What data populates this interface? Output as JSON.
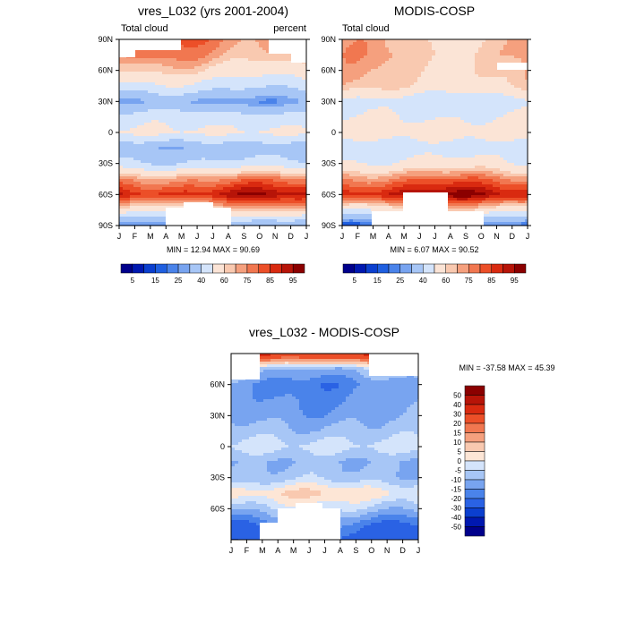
{
  "chart_data": [
    {
      "type": "heatmap",
      "title": "vres_L032 (yrs 2001-2004)",
      "left_label": "Total cloud",
      "right_label": "percent",
      "stats": "MIN =  12.94 MAX =  90.69",
      "x_ticks": [
        "J",
        "F",
        "M",
        "A",
        "M",
        "J",
        "J",
        "A",
        "S",
        "O",
        "N",
        "D",
        "J"
      ],
      "y_ticks": [
        "90N",
        "60N",
        "30N",
        "0",
        "30S",
        "60S",
        "90S"
      ],
      "ylim": [
        -90,
        90
      ],
      "levels": [
        5,
        10,
        15,
        20,
        25,
        30,
        40,
        50,
        60,
        65,
        70,
        75,
        80,
        85,
        90,
        95
      ],
      "colorbar_labels": [
        "5",
        "15",
        "25",
        "40",
        "60",
        "75",
        "85",
        "95"
      ],
      "colors": [
        "#00008b",
        "#0018b0",
        "#0b3fcf",
        "#1f5fe0",
        "#4a83ea",
        "#78a4f0",
        "#a7c6f6",
        "#d4e4fb",
        "#fbe4d6",
        "#f9c9b0",
        "#f5a07e",
        "#f17750",
        "#ec4f28",
        "#d92a10",
        "#b71408",
        "#8b0000"
      ],
      "profile": [
        {
          "lat": 90,
          "value": 72
        },
        {
          "lat": 75,
          "value": 68
        },
        {
          "lat": 60,
          "value": 58
        },
        {
          "lat": 45,
          "value": 45
        },
        {
          "lat": 30,
          "value": 28
        },
        {
          "lat": 15,
          "value": 45
        },
        {
          "lat": 0,
          "value": 52
        },
        {
          "lat": -15,
          "value": 32
        },
        {
          "lat": -30,
          "value": 42
        },
        {
          "lat": -45,
          "value": 70
        },
        {
          "lat": -60,
          "value": 86
        },
        {
          "lat": -75,
          "value": 58
        },
        {
          "lat": -90,
          "value": 25
        }
      ]
    },
    {
      "type": "heatmap",
      "title": "MODIS-COSP",
      "left_label": "Total cloud",
      "stats": "MIN =   6.07 MAX =  90.52",
      "x_ticks": [
        "J",
        "F",
        "M",
        "A",
        "M",
        "J",
        "J",
        "A",
        "S",
        "O",
        "N",
        "D",
        "J"
      ],
      "y_ticks": [
        "90N",
        "60N",
        "30N",
        "0",
        "30S",
        "60S",
        "90S"
      ],
      "ylim": [
        -90,
        90
      ],
      "levels": [
        5,
        10,
        15,
        20,
        25,
        30,
        40,
        50,
        60,
        65,
        70,
        75,
        80,
        85,
        90,
        95
      ],
      "colorbar_labels": [
        "5",
        "15",
        "25",
        "40",
        "60",
        "75",
        "85",
        "95"
      ],
      "colors": [
        "#00008b",
        "#0018b0",
        "#0b3fcf",
        "#1f5fe0",
        "#4a83ea",
        "#78a4f0",
        "#a7c6f6",
        "#d4e4fb",
        "#fbe4d6",
        "#f9c9b0",
        "#f5a07e",
        "#f17750",
        "#ec4f28",
        "#d92a10",
        "#b71408",
        "#8b0000"
      ],
      "profile": [
        {
          "lat": 90,
          "value": 62
        },
        {
          "lat": 75,
          "value": 64
        },
        {
          "lat": 60,
          "value": 62
        },
        {
          "lat": 45,
          "value": 60
        },
        {
          "lat": 30,
          "value": 44
        },
        {
          "lat": 15,
          "value": 50
        },
        {
          "lat": 0,
          "value": 55
        },
        {
          "lat": -15,
          "value": 44
        },
        {
          "lat": -30,
          "value": 52
        },
        {
          "lat": -45,
          "value": 72
        },
        {
          "lat": -60,
          "value": 88
        },
        {
          "lat": -75,
          "value": 55
        },
        {
          "lat": -90,
          "value": 22
        }
      ]
    },
    {
      "type": "heatmap",
      "title": "vres_L032 - MODIS-COSP",
      "stats": "MIN = -37.58 MAX =  45.39",
      "x_ticks": [
        "J",
        "F",
        "M",
        "A",
        "M",
        "J",
        "J",
        "A",
        "S",
        "O",
        "N",
        "D",
        "J"
      ],
      "y_ticks": [
        "60N",
        "30N",
        "0",
        "30S",
        "60S"
      ],
      "ylim": [
        -90,
        90
      ],
      "levels": [
        -50,
        -40,
        -30,
        -20,
        -15,
        -10,
        -5,
        0,
        5,
        10,
        15,
        20,
        30,
        40,
        50
      ],
      "colorbar_labels": [
        "50",
        "40",
        "30",
        "20",
        "15",
        "10",
        "5",
        "0",
        "-5",
        "-10",
        "-15",
        "-20",
        "-30",
        "-40",
        "-50"
      ],
      "colors": [
        "#00008b",
        "#0018b0",
        "#0b3fcf",
        "#2a62e4",
        "#4a83ea",
        "#78a4f0",
        "#a7c6f6",
        "#d4e4fb",
        "#fde6d6",
        "#f9c9b0",
        "#f5a07e",
        "#f17750",
        "#ec4f28",
        "#d92a10",
        "#b71408",
        "#8b0000"
      ],
      "profile": [
        {
          "lat": 90,
          "value": 35
        },
        {
          "lat": 75,
          "value": -8
        },
        {
          "lat": 60,
          "value": -16
        },
        {
          "lat": 45,
          "value": -14
        },
        {
          "lat": 30,
          "value": -12
        },
        {
          "lat": 15,
          "value": -8
        },
        {
          "lat": 0,
          "value": -3
        },
        {
          "lat": -15,
          "value": -10
        },
        {
          "lat": -30,
          "value": -8
        },
        {
          "lat": -45,
          "value": 4
        },
        {
          "lat": -60,
          "value": -6
        },
        {
          "lat": -75,
          "value": -18
        },
        {
          "lat": -90,
          "value": -25
        }
      ]
    }
  ]
}
